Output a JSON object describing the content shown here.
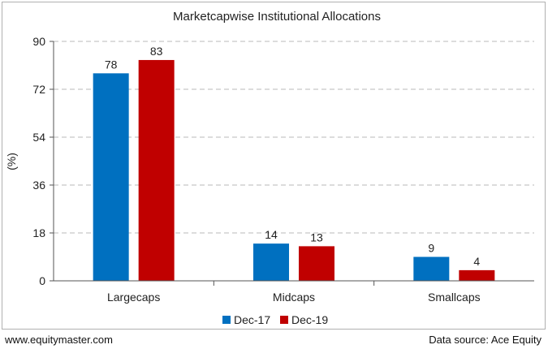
{
  "chart_data": {
    "type": "bar",
    "title": "Marketcapwise Institutional Allocations",
    "xlabel": "",
    "ylabel": "(%)",
    "categories": [
      "Largecaps",
      "Midcaps",
      "Smallcaps"
    ],
    "series": [
      {
        "name": "Dec-17",
        "values": [
          78,
          14,
          9
        ],
        "color": "#0070c0"
      },
      {
        "name": "Dec-19",
        "values": [
          83,
          13,
          4
        ],
        "color": "#c00000"
      }
    ],
    "ylim": [
      0,
      90
    ],
    "yticks": [
      0,
      18,
      36,
      54,
      72,
      90
    ],
    "grid": true,
    "legend_position": "bottom"
  },
  "footer": {
    "left": "www.equitymaster.com",
    "right": "Data source: Ace Equity"
  }
}
